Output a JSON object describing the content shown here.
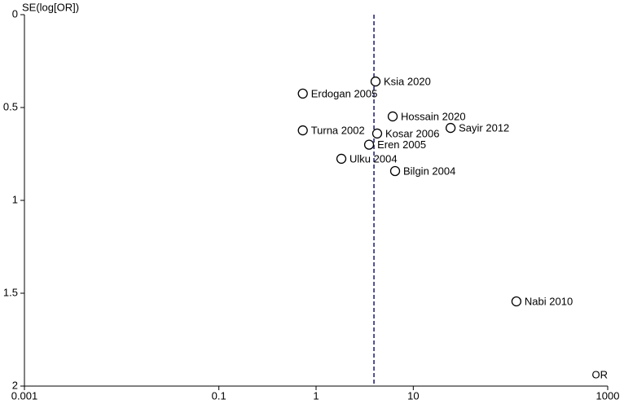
{
  "chart_data": {
    "type": "scatter",
    "x_label": "OR",
    "y_label": "SE(log[OR])",
    "labels": [
      "Ksia 2020",
      "Erdogan 2005",
      "Hossain 2020",
      "Sayir 2012",
      "Turna 2002",
      "Kosar 2006",
      "Eren 2005",
      "Ulku 2004",
      "Bilgin 2004",
      "Nabi 2010"
    ],
    "x": [
      4.09,
      0.73,
      6.14,
      24.2,
      0.73,
      4.25,
      3.51,
      1.82,
      6.5,
      115
    ],
    "values": [
      0.36,
      0.425,
      0.548,
      0.61,
      0.623,
      0.64,
      0.7,
      0.776,
      0.842,
      1.544
    ],
    "color": "#000000",
    "summary_or": 3.94,
    "summary_color": "#1a1a6e",
    "x_log": true,
    "y_inverted": true,
    "xlim": [
      0.001,
      1000
    ],
    "xticks": [
      0.001,
      0.1,
      1,
      10,
      1000
    ],
    "ylim": [
      0,
      2
    ],
    "yticks": [
      0,
      0.5,
      1,
      1.5,
      2
    ]
  }
}
